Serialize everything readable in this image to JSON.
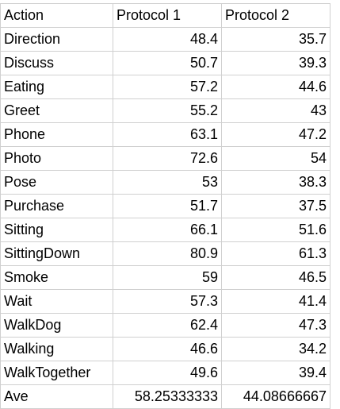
{
  "table": {
    "headers": [
      "Action",
      "Protocol 1",
      "Protocol 2"
    ],
    "rows": [
      [
        "Direction",
        "48.4",
        "35.7"
      ],
      [
        "Discuss",
        "50.7",
        "39.3"
      ],
      [
        "Eating",
        "57.2",
        "44.6"
      ],
      [
        "Greet",
        "55.2",
        "43"
      ],
      [
        "Phone",
        "63.1",
        "47.2"
      ],
      [
        "Photo",
        "72.6",
        "54"
      ],
      [
        "Pose",
        "53",
        "38.3"
      ],
      [
        "Purchase",
        "51.7",
        "37.5"
      ],
      [
        "Sitting",
        "66.1",
        "51.6"
      ],
      [
        "SittingDown",
        "80.9",
        "61.3"
      ],
      [
        "Smoke",
        "59",
        "46.5"
      ],
      [
        "Wait",
        "57.3",
        "41.4"
      ],
      [
        "WalkDog",
        "62.4",
        "47.3"
      ],
      [
        "Walking",
        "46.6",
        "34.2"
      ],
      [
        "WalkTogether",
        "49.6",
        "39.4"
      ],
      [
        "Ave",
        "58.25333333",
        "44.08666667"
      ]
    ]
  }
}
